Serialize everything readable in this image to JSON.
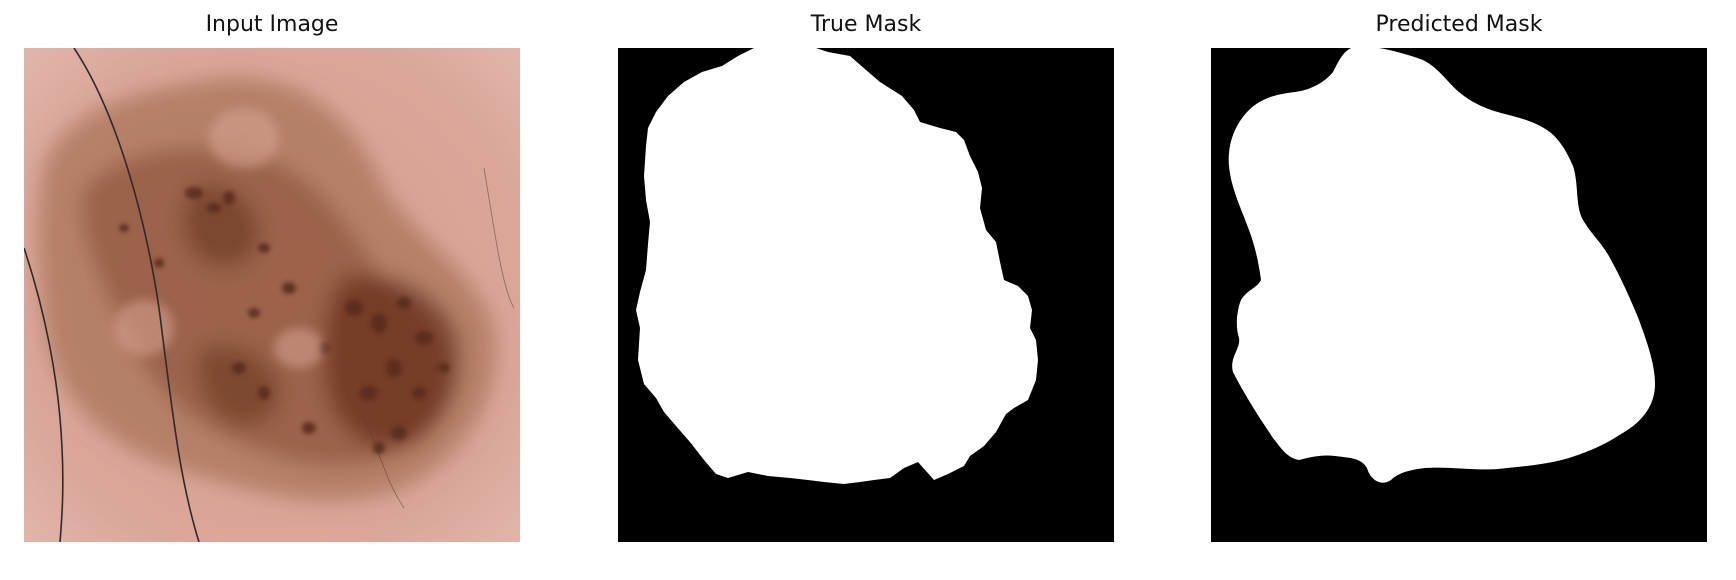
{
  "panels": [
    {
      "title": "Input Image",
      "kind": "dermoscopy-photo"
    },
    {
      "title": "True Mask",
      "kind": "binary-mask"
    },
    {
      "title": "Predicted Mask",
      "kind": "binary-mask"
    }
  ],
  "colors": {
    "skin": "#d9a393",
    "lesion_light": "#a66b4a",
    "lesion_dark": "#5e301f",
    "mask_fg": "#ffffff",
    "mask_bg": "#000000"
  }
}
